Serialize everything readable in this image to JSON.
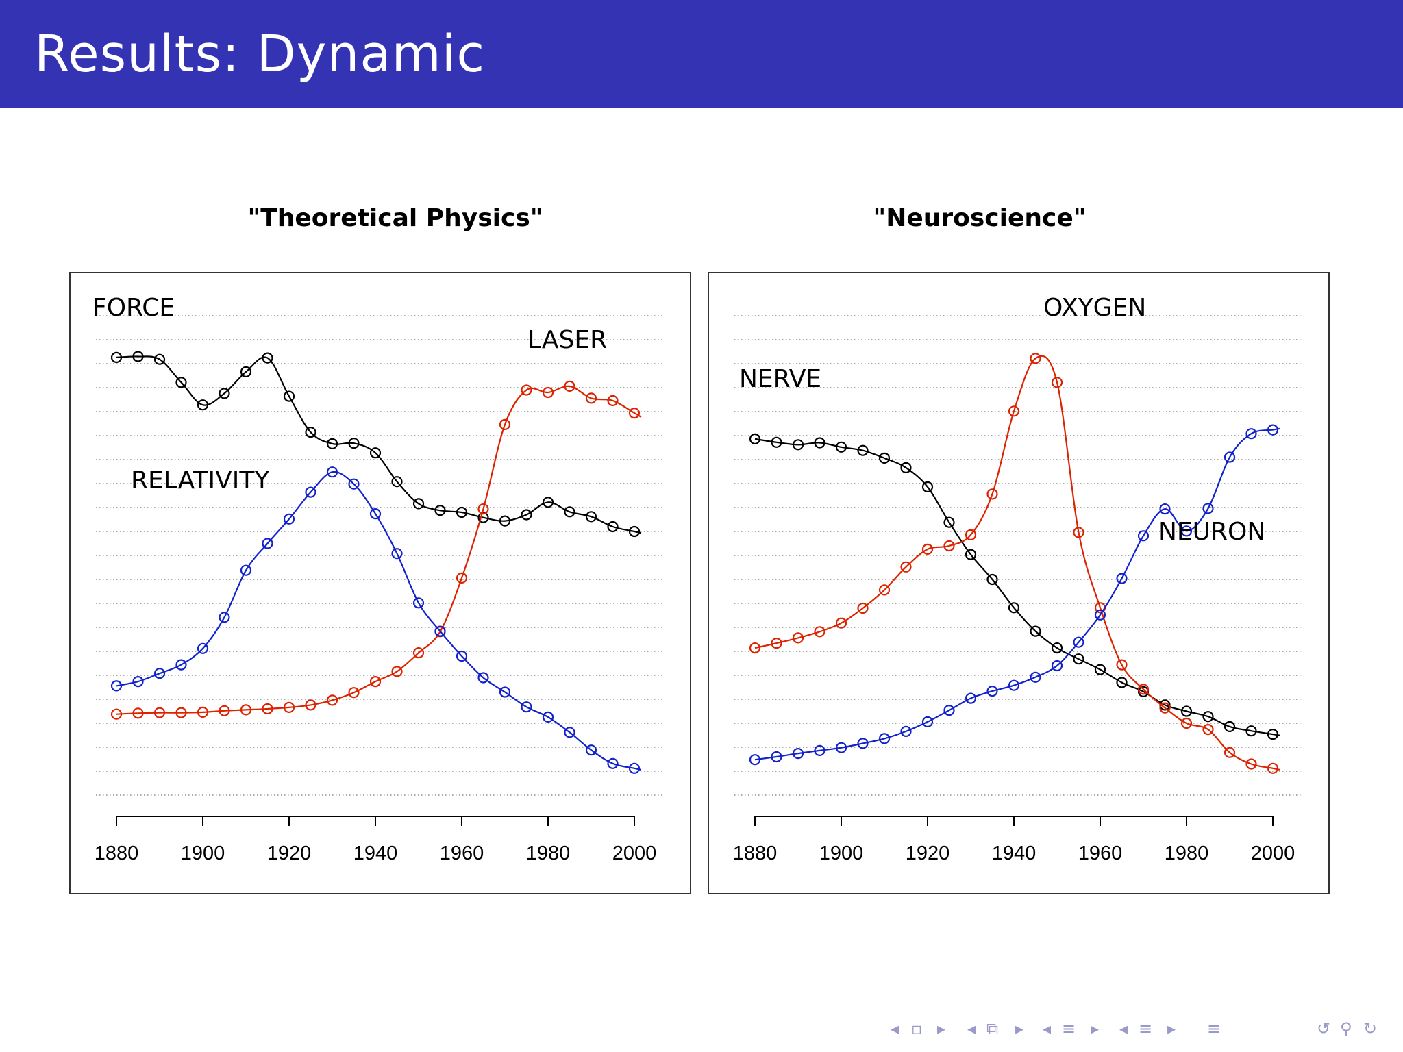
{
  "slide": {
    "title": "Results:  Dynamic"
  },
  "nav": {
    "icons": [
      "prev-frame-icon",
      "frame-icon",
      "next-frame-icon",
      "prev-subsection-icon",
      "subsection-icon",
      "next-subsection-icon",
      "prev-section-icon",
      "section-icon",
      "next-section-icon",
      "prev-slide-icon",
      "slide-icon",
      "next-slide-icon",
      "appendix-icon",
      "undo-icon",
      "search-icon",
      "redo-icon"
    ],
    "color": "#9a9ac8"
  },
  "chart_data": [
    {
      "type": "line",
      "title": "\"Theoretical Physics\"",
      "xlabel": "",
      "ylabel": "",
      "xlim": [
        1880,
        2000
      ],
      "xticks": [
        1880,
        1900,
        1920,
        1940,
        1960,
        1980,
        2000
      ],
      "grid": true,
      "legend": "labels placed near lines",
      "x": [
        1880,
        1885,
        1890,
        1895,
        1900,
        1905,
        1910,
        1915,
        1920,
        1925,
        1930,
        1935,
        1940,
        1945,
        1950,
        1955,
        1960,
        1965,
        1970,
        1975,
        1980,
        1985,
        1990,
        1995,
        2000
      ],
      "series": [
        {
          "name": "FORCE",
          "color": "#000000",
          "values": [
            0.913,
            0.915,
            0.909,
            0.861,
            0.814,
            0.838,
            0.883,
            0.912,
            0.832,
            0.757,
            0.733,
            0.734,
            0.714,
            0.654,
            0.608,
            0.594,
            0.59,
            0.579,
            0.572,
            0.585,
            0.611,
            0.591,
            0.581,
            0.56,
            0.55
          ]
        },
        {
          "name": "LASER",
          "color": "#dd2200",
          "values": [
            0.169,
            0.171,
            0.172,
            0.172,
            0.173,
            0.176,
            0.178,
            0.18,
            0.183,
            0.188,
            0.198,
            0.214,
            0.237,
            0.258,
            0.297,
            0.341,
            0.453,
            0.597,
            0.773,
            0.845,
            0.84,
            0.853,
            0.828,
            0.823,
            0.797
          ]
        },
        {
          "name": "RELATIVITY",
          "color": "#1122cc",
          "values": [
            0.228,
            0.237,
            0.254,
            0.272,
            0.306,
            0.371,
            0.469,
            0.525,
            0.576,
            0.632,
            0.674,
            0.649,
            0.587,
            0.504,
            0.401,
            0.342,
            0.29,
            0.245,
            0.215,
            0.184,
            0.163,
            0.131,
            0.094,
            0.066,
            0.056
          ]
        }
      ],
      "annotations": [
        "FORCE",
        "LASER",
        "RELATIVITY"
      ]
    },
    {
      "type": "line",
      "title": "\"Neuroscience\"",
      "xlabel": "",
      "ylabel": "",
      "xlim": [
        1880,
        2000
      ],
      "xticks": [
        1880,
        1900,
        1920,
        1940,
        1960,
        1980,
        2000
      ],
      "grid": true,
      "legend": "labels placed near lines",
      "x": [
        1880,
        1885,
        1890,
        1895,
        1900,
        1905,
        1910,
        1915,
        1920,
        1925,
        1930,
        1935,
        1940,
        1945,
        1950,
        1955,
        1960,
        1965,
        1970,
        1975,
        1980,
        1985,
        1990,
        1995,
        2000
      ],
      "series": [
        {
          "name": "NERVE",
          "color": "#000000",
          "values": [
            0.743,
            0.736,
            0.731,
            0.735,
            0.726,
            0.719,
            0.703,
            0.683,
            0.643,
            0.569,
            0.502,
            0.45,
            0.391,
            0.342,
            0.307,
            0.284,
            0.262,
            0.235,
            0.216,
            0.188,
            0.175,
            0.164,
            0.143,
            0.134,
            0.127
          ]
        },
        {
          "name": "OXYGEN",
          "color": "#dd2200",
          "values": [
            0.307,
            0.317,
            0.328,
            0.341,
            0.359,
            0.39,
            0.428,
            0.476,
            0.513,
            0.52,
            0.543,
            0.628,
            0.801,
            0.911,
            0.861,
            0.548,
            0.391,
            0.272,
            0.221,
            0.182,
            0.15,
            0.137,
            0.089,
            0.065,
            0.056
          ]
        },
        {
          "name": "NEURON",
          "color": "#1122cc",
          "values": [
            0.074,
            0.08,
            0.087,
            0.093,
            0.099,
            0.108,
            0.118,
            0.133,
            0.153,
            0.177,
            0.202,
            0.217,
            0.229,
            0.246,
            0.27,
            0.319,
            0.376,
            0.452,
            0.541,
            0.597,
            0.551,
            0.598,
            0.705,
            0.754,
            0.762
          ]
        }
      ],
      "annotations": [
        "NERVE",
        "OXYGEN",
        "NEURON"
      ]
    }
  ]
}
